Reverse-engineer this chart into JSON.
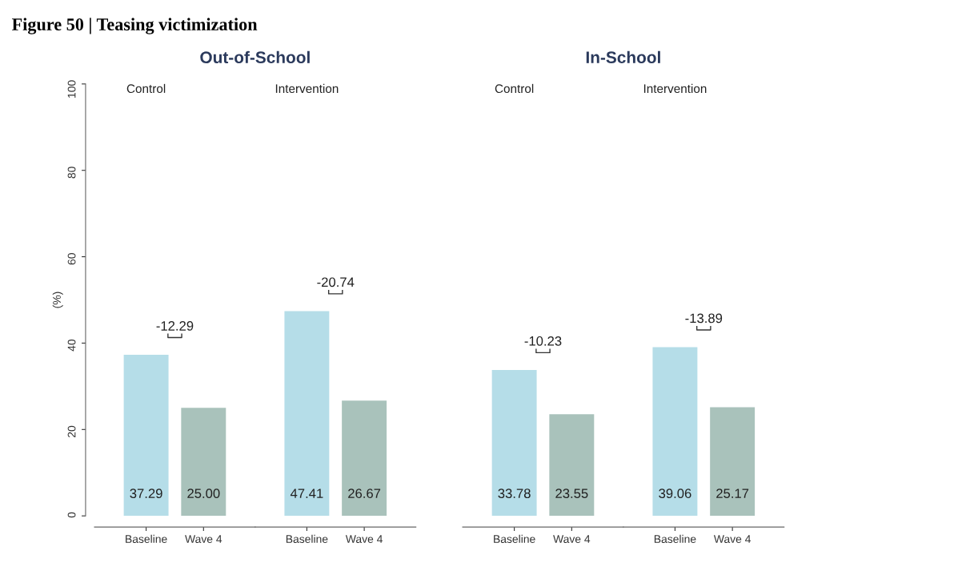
{
  "chart_data": [
    {
      "type": "bar",
      "title": "Control",
      "subtitle": "Out-of-School",
      "ylabel": "(%)",
      "categories": [
        "Baseline",
        "Wave 4"
      ],
      "values": [
        37.29,
        25.0
      ],
      "value_labels": [
        "37.29",
        "25.00"
      ],
      "colors": [
        "#b5dde8",
        "#a9c2bb"
      ],
      "ylim": [
        0,
        100
      ],
      "yticks": [
        0,
        20,
        40,
        60,
        80,
        100
      ],
      "grid": false,
      "legend": false,
      "annotations": [
        "-12.29",
        "Figure 50 | Teasing victimization"
      ]
    },
    {
      "type": "bar",
      "title": "Intervention",
      "categories": [
        "Baseline",
        "Wave 4"
      ],
      "values": [
        47.41,
        26.67
      ],
      "value_labels": [
        "47.41",
        "26.67"
      ],
      "colors": [
        "#b5dde8",
        "#a9c2bb"
      ],
      "ylim": [
        0,
        100
      ],
      "yticks": [
        0,
        20,
        40,
        60,
        80,
        100
      ],
      "tick_labels": "x",
      "grid": false,
      "legend": false,
      "annotations": [
        "-20.74"
      ]
    },
    {
      "type": "bar",
      "title": "Control",
      "subtitle": "In-School",
      "categories": [
        "Baseline",
        "Wave 4"
      ],
      "values": [
        33.78,
        23.55
      ],
      "value_labels": [
        "33.78",
        "23.55"
      ],
      "colors": [
        "#b5dde8",
        "#a9c2bb"
      ],
      "ylim": [
        0,
        100
      ],
      "yticks": [
        0,
        20,
        40,
        60,
        80,
        100
      ],
      "tick_labels": "x",
      "grid": false,
      "legend": false,
      "annotations": [
        "-10.23"
      ]
    },
    {
      "type": "bar",
      "title": "Intervention",
      "categories": [
        "Baseline",
        "Wave 4"
      ],
      "values": [
        39.06,
        25.17
      ],
      "value_labels": [
        "39.06",
        "25.17"
      ],
      "colors": [
        "#b5dde8",
        "#a9c2bb"
      ],
      "ylim": [
        0,
        100
      ],
      "yticks": [
        0,
        20,
        40,
        60,
        80,
        100
      ],
      "tick_labels": "x",
      "grid": false,
      "legend": false,
      "annotations": [
        "-13.89"
      ]
    }
  ]
}
